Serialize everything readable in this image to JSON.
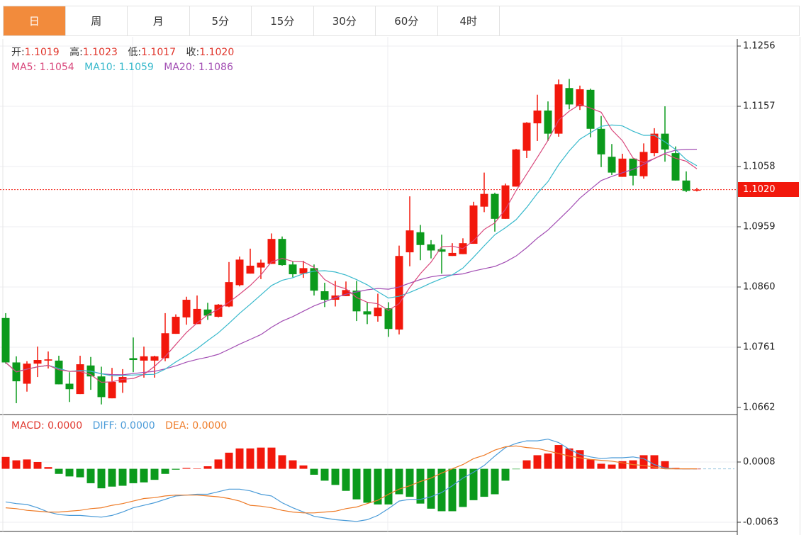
{
  "tabs": [
    "日",
    "周",
    "月",
    "5分",
    "15分",
    "30分",
    "60分",
    "4时"
  ],
  "active_tab": 0,
  "ohlc_legend": {
    "open_label": "开:",
    "open": "1.1019",
    "high_label": "高:",
    "high": "1.1023",
    "low_label": "低:",
    "low": "1.1017",
    "close_label": "收:",
    "close": "1.1020"
  },
  "ma_legend": {
    "ma5": "MA5: 1.1054",
    "ma10": "MA10: 1.1059",
    "ma20": "MA20: 1.1086"
  },
  "macd_legend": {
    "macd": "MACD: 0.0000",
    "diff": "DIFF: 0.0000",
    "dea": "DEA: 0.0000"
  },
  "price_axis": [
    "1.1256",
    "1.1157",
    "1.1058",
    "1.0959",
    "1.0860",
    "1.0761",
    "1.0662"
  ],
  "macd_axis": [
    "0.0008",
    "-0.0063"
  ],
  "current_price": "1.1020",
  "colors": {
    "up": "#f2180c",
    "down": "#0b9a1c",
    "ma5": "#d9487c",
    "ma10": "#38b9cc",
    "ma20": "#a24db3",
    "diff": "#4a9bd8",
    "dea": "#ee7b27",
    "active_tab": "#f28b3c"
  },
  "chart_data": {
    "type": "candlestick",
    "ylim": [
      1.0662,
      1.1256
    ],
    "candles_ohlc": [
      [
        1.0809,
        1.0817,
        1.0734,
        1.0736
      ],
      [
        1.0736,
        1.0746,
        1.0669,
        1.0705
      ],
      [
        1.0701,
        1.0738,
        1.0688,
        1.0734
      ],
      [
        1.0734,
        1.0762,
        1.0712,
        1.074
      ],
      [
        1.0739,
        1.0754,
        1.0726,
        1.0741
      ],
      [
        1.0739,
        1.0747,
        1.07,
        1.07
      ],
      [
        1.0701,
        1.072,
        1.0671,
        1.0692
      ],
      [
        1.0684,
        1.0747,
        1.0684,
        1.0733
      ],
      [
        1.0731,
        1.0745,
        1.0691,
        1.0713
      ],
      [
        1.0713,
        1.0729,
        1.0667,
        1.0679
      ],
      [
        1.0677,
        1.0727,
        1.0677,
        1.0704
      ],
      [
        1.0703,
        1.0725,
        1.0686,
        1.0712
      ],
      [
        1.0743,
        1.0777,
        1.072,
        1.074
      ],
      [
        1.0739,
        1.0762,
        1.0711,
        1.0746
      ],
      [
        1.0739,
        1.0747,
        1.0711,
        1.0746
      ],
      [
        1.0743,
        1.0817,
        1.0738,
        1.0784
      ],
      [
        1.0783,
        1.0815,
        1.0783,
        1.0811
      ],
      [
        1.081,
        1.0844,
        1.0798,
        1.0839
      ],
      [
        1.0799,
        1.0846,
        1.0799,
        1.0824
      ],
      [
        1.0823,
        1.0834,
        1.0806,
        1.0813
      ],
      [
        1.0811,
        1.0832,
        1.081,
        1.0831
      ],
      [
        1.0828,
        1.0901,
        1.0827,
        1.0868
      ],
      [
        1.0863,
        1.091,
        1.0861,
        1.0905
      ],
      [
        1.0882,
        1.0923,
        1.0882,
        1.0895
      ],
      [
        1.0892,
        1.0905,
        1.0873,
        1.09
      ],
      [
        1.0898,
        1.0948,
        1.0898,
        1.0939
      ],
      [
        1.0939,
        1.0943,
        1.0895,
        1.0896
      ],
      [
        1.0897,
        1.0902,
        1.0876,
        1.0881
      ],
      [
        1.0882,
        1.0903,
        1.0875,
        1.0891
      ],
      [
        1.0891,
        1.0897,
        1.0846,
        1.0854
      ],
      [
        1.0853,
        1.0867,
        1.0827,
        1.0839
      ],
      [
        1.0839,
        1.087,
        1.0828,
        1.0846
      ],
      [
        1.0845,
        1.0869,
        1.0845,
        1.0855
      ],
      [
        1.0854,
        1.087,
        1.0804,
        1.082
      ],
      [
        1.082,
        1.0835,
        1.0799,
        1.0815
      ],
      [
        1.0812,
        1.0849,
        1.0803,
        1.0826
      ],
      [
        1.0825,
        1.0835,
        1.0778,
        1.0791
      ],
      [
        1.079,
        1.0928,
        1.0782,
        1.0911
      ],
      [
        1.0917,
        1.1009,
        1.0894,
        1.0953
      ],
      [
        1.095,
        1.0962,
        1.0904,
        1.0929
      ],
      [
        1.093,
        1.0937,
        1.0907,
        1.092
      ],
      [
        1.0922,
        1.0946,
        1.0882,
        1.0918
      ],
      [
        1.0911,
        1.0932,
        1.0911,
        1.0916
      ],
      [
        1.0914,
        1.094,
        1.0914,
        1.0932
      ],
      [
        1.0931,
        1.1,
        1.0931,
        1.0994
      ],
      [
        1.0992,
        1.1048,
        1.0983,
        1.1013
      ],
      [
        1.1013,
        1.1015,
        1.0951,
        1.0972
      ],
      [
        1.0972,
        1.103,
        1.0972,
        1.1027
      ],
      [
        1.1025,
        1.1087,
        1.1025,
        1.1086
      ],
      [
        1.1084,
        1.1131,
        1.1072,
        1.113
      ],
      [
        1.1129,
        1.1176,
        1.11,
        1.115
      ],
      [
        1.115,
        1.1165,
        1.11,
        1.1112
      ],
      [
        1.1112,
        1.1201,
        1.1107,
        1.1193
      ],
      [
        1.1187,
        1.1202,
        1.1152,
        1.116
      ],
      [
        1.1157,
        1.1191,
        1.1151,
        1.1185
      ],
      [
        1.1184,
        1.1186,
        1.1106,
        1.112
      ],
      [
        1.112,
        1.1141,
        1.1057,
        1.1078
      ],
      [
        1.1074,
        1.1095,
        1.1044,
        1.1048
      ],
      [
        1.1041,
        1.1079,
        1.1041,
        1.1071
      ],
      [
        1.1071,
        1.1071,
        1.1027,
        1.1043
      ],
      [
        1.1042,
        1.1096,
        1.1038,
        1.1082
      ],
      [
        1.108,
        1.1121,
        1.1075,
        1.1112
      ],
      [
        1.1112,
        1.1157,
        1.1066,
        1.1086
      ],
      [
        1.108,
        1.1091,
        1.1035,
        1.1035
      ],
      [
        1.1035,
        1.105,
        1.1016,
        1.1018
      ],
      [
        1.1019,
        1.1023,
        1.1017,
        1.102
      ]
    ],
    "macd_ylim": [
      -0.0063,
      0.0008
    ],
    "macd_hist": [
      0.0014,
      0.001,
      0.0011,
      0.0008,
      0.0002,
      -0.0006,
      -0.0009,
      -0.001,
      -0.0017,
      -0.0023,
      -0.0021,
      -0.002,
      -0.0017,
      -0.0016,
      -0.0013,
      -0.0006,
      -0.0001,
      0.0001,
      3e-05,
      0.0003,
      0.0011,
      0.0019,
      0.0024,
      0.0024,
      0.0025,
      0.0025,
      0.0016,
      0.001,
      0.0004,
      -0.0007,
      -0.0014,
      -0.0019,
      -0.0026,
      -0.0036,
      -0.004,
      -0.0042,
      -0.0042,
      -0.003,
      -0.0033,
      -0.0041,
      -0.0047,
      -0.005,
      -0.005,
      -0.0045,
      -0.0037,
      -0.0033,
      -0.003,
      -0.0014,
      -3e-05,
      0.001,
      0.0016,
      0.0018,
      0.0028,
      0.0024,
      0.0022,
      0.0011,
      0.0006,
      0.0005,
      0.0009,
      0.001,
      0.0016,
      0.0016,
      0.0009,
      0.0001,
      0,
      0
    ],
    "diff": [
      -0.0039,
      -0.0041,
      -0.0042,
      -0.0046,
      -0.0051,
      -0.0054,
      -0.0055,
      -0.0055,
      -0.0056,
      -0.0057,
      -0.0055,
      -0.0051,
      -0.0046,
      -0.0043,
      -0.004,
      -0.0036,
      -0.0032,
      -0.0031,
      -0.003,
      -0.003,
      -0.0027,
      -0.0024,
      -0.0024,
      -0.0026,
      -0.003,
      -0.0032,
      -0.004,
      -0.0046,
      -0.0051,
      -0.0056,
      -0.0058,
      -0.006,
      -0.0061,
      -0.0062,
      -0.006,
      -0.0055,
      -0.0047,
      -0.0038,
      -0.0036,
      -0.0036,
      -0.0033,
      -0.0028,
      -0.002,
      -0.0011,
      -0.0004,
      0.0004,
      0.0015,
      0.0025,
      0.003,
      0.0033,
      0.0033,
      0.0035,
      0.0031,
      0.0023,
      0.0017,
      0.0014,
      0.0012,
      0.0013,
      0.0013,
      0.0014,
      0.0012,
      0.0005,
      0.0001,
      0,
      0,
      0
    ],
    "dea": [
      -0.0046,
      -0.0047,
      -0.0049,
      -0.005,
      -0.0051,
      -0.0051,
      -0.005,
      -0.0049,
      -0.0047,
      -0.0046,
      -0.0043,
      -0.0041,
      -0.0038,
      -0.0035,
      -0.0034,
      -0.0032,
      -0.0031,
      -0.0031,
      -0.0031,
      -0.0032,
      -0.0033,
      -0.0035,
      -0.0038,
      -0.0043,
      -0.0044,
      -0.0046,
      -0.0049,
      -0.0051,
      -0.0052,
      -0.0052,
      -0.0051,
      -0.005,
      -0.0047,
      -0.0045,
      -0.0041,
      -0.0037,
      -0.003,
      -0.0024,
      -0.002,
      -0.0015,
      -0.0011,
      -0.0005,
      0.0,
      0.0005,
      0.0012,
      0.0016,
      0.0022,
      0.0026,
      0.0027,
      0.0025,
      0.0024,
      0.0021,
      0.0018,
      0.0015,
      0.0013,
      0.0011,
      0.001,
      0.0009,
      0.0007,
      0.0005,
      0.0004,
      0.0002,
      0,
      0,
      0,
      0
    ]
  }
}
